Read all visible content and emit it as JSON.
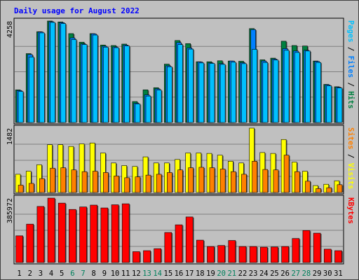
{
  "colors": {
    "background": "#c0c0c0",
    "panel": "#c0c0c0",
    "title": "#0000ff",
    "hits": "#008040",
    "files": "#0080ff",
    "pages": "#00c0ff",
    "visits": "#ffff00",
    "sites": "#ff8000",
    "kbytes": "#ff0000",
    "weekend_label": "#00805c",
    "weekday_label": "#000000",
    "grid": "#808080"
  },
  "chart_data": {
    "type": "bar",
    "title": "Daily usage for August 2022",
    "categories": [
      "1",
      "2",
      "3",
      "4",
      "5",
      "6",
      "7",
      "8",
      "9",
      "10",
      "11",
      "12",
      "13",
      "14",
      "15",
      "16",
      "17",
      "18",
      "19",
      "20",
      "21",
      "22",
      "23",
      "24",
      "25",
      "26",
      "27",
      "28",
      "29",
      "30",
      "31"
    ],
    "weekend_days": [
      "6",
      "7",
      "13",
      "14",
      "20",
      "21",
      "27",
      "28"
    ],
    "panels": [
      {
        "id": "hits-files-pages",
        "max_label": "4258",
        "ymax": 4258,
        "legend": [
          {
            "key": "pages",
            "label": "Pages"
          },
          {
            "key": "sep",
            "label": " / "
          },
          {
            "key": "files",
            "label": "Files"
          },
          {
            "key": "sep",
            "label": " / "
          },
          {
            "key": "hits",
            "label": "Hits"
          }
        ],
        "series": [
          {
            "name": "Hits",
            "color_key": "hits",
            "values": [
              1370,
              2890,
              3810,
              4258,
              4220,
              3730,
              3370,
              3730,
              3250,
              3230,
              3290,
              880,
              1370,
              1460,
              2450,
              3440,
              3310,
              2550,
              2550,
              2590,
              2580,
              2570,
              3940,
              2630,
              2700,
              3410,
              3230,
              3210,
              2580,
              1600,
              1500
            ]
          },
          {
            "name": "Files",
            "color_key": "files",
            "values": [
              1340,
              2850,
              3800,
              4230,
              4190,
              3550,
              3300,
              3720,
              3200,
              3170,
              3250,
              810,
              1160,
              1410,
              2380,
              3350,
              3130,
              2540,
              2500,
              2470,
              2580,
              2510,
              3900,
              2580,
              2660,
              3100,
              3000,
              3030,
              2560,
              1580,
              1480
            ]
          },
          {
            "name": "Pages",
            "color_key": "pages",
            "values": [
              1300,
              2750,
              3760,
              4200,
              4150,
              3480,
              3270,
              3670,
              3160,
              3140,
              3210,
              780,
              1110,
              1360,
              2340,
              3270,
              3080,
              2500,
              2480,
              2440,
              2530,
              2470,
              3070,
              2520,
              2620,
              3030,
              2940,
              3000,
              2520,
              1540,
              1450
            ]
          }
        ]
      },
      {
        "id": "visits-sites",
        "max_label": "1482",
        "ymax": 1482,
        "legend": [
          {
            "key": "sites",
            "label": "Sites"
          },
          {
            "key": "sep",
            "label": " / "
          },
          {
            "key": "visits",
            "label": "Visits"
          }
        ],
        "series": [
          {
            "name": "Visits",
            "color_key": "visits",
            "values": [
              420,
              490,
              640,
              1100,
              1100,
              1060,
              1120,
              1140,
              910,
              680,
              620,
              600,
              820,
              680,
              680,
              760,
              910,
              910,
              900,
              860,
              720,
              680,
              1482,
              920,
              900,
              1220,
              700,
              490,
              160,
              190,
              270
            ]
          },
          {
            "name": "Sites",
            "color_key": "sites",
            "values": [
              170,
              210,
              320,
              560,
              570,
              520,
              480,
              490,
              460,
              380,
              340,
              360,
              400,
              420,
              460,
              520,
              570,
              580,
              570,
              540,
              480,
              420,
              720,
              530,
              520,
              860,
              480,
              260,
              90,
              110,
              180
            ]
          }
        ]
      },
      {
        "id": "kbytes",
        "max_label": "385972",
        "ymax": 385972,
        "legend": [
          {
            "key": "kbytes",
            "label": "KBytes"
          }
        ],
        "series": [
          {
            "name": "KBytes",
            "color_key": "kbytes",
            "values": [
              160000,
              230000,
              336000,
              385972,
              356000,
              318000,
              333000,
              344000,
              327000,
              346000,
              352000,
              65000,
              71000,
              83000,
              180000,
              226000,
              273000,
              134000,
              96000,
              102000,
              132000,
              96000,
              96000,
              92000,
              93000,
              96000,
              144000,
              192000,
              176000,
              80000,
              71000
            ]
          }
        ]
      }
    ]
  }
}
